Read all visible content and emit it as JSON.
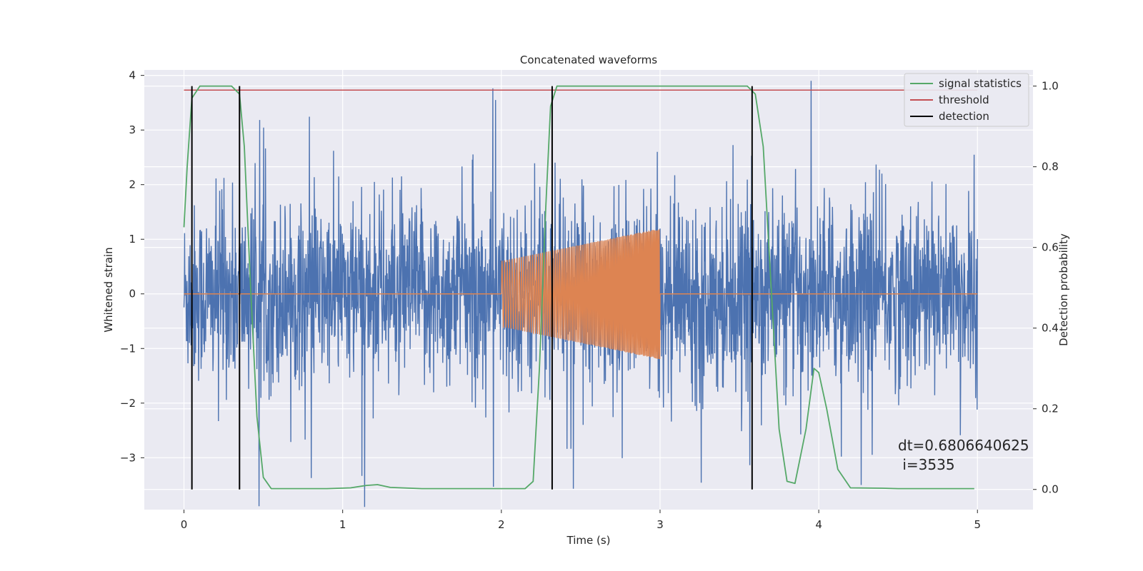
{
  "chart_data": {
    "type": "line",
    "title": "Concatenated waveforms",
    "xlabel": "Time (s)",
    "ylabel_left": "Whitened strain",
    "ylabel_right": "Detection probability",
    "xlim": [
      -0.25,
      5.35
    ],
    "ylim_left": [
      -3.95,
      4.1
    ],
    "ylim_right": [
      -0.05,
      1.04
    ],
    "x_ticks": [
      0,
      1,
      2,
      3,
      4,
      5
    ],
    "x_tick_labels": [
      "0",
      "1",
      "2",
      "3",
      "4",
      "5"
    ],
    "y_left_ticks": [
      -3,
      -2,
      -1,
      0,
      1,
      2,
      3,
      4
    ],
    "y_left_tick_labels": [
      "−3",
      "−2",
      "−1",
      "0",
      "1",
      "2",
      "3",
      "4"
    ],
    "y_right_ticks": [
      0.0,
      0.2,
      0.4,
      0.6,
      0.8,
      1.0
    ],
    "y_right_tick_labels": [
      "0.0",
      "0.2",
      "0.4",
      "0.6",
      "0.8",
      "1.0"
    ],
    "grid": true,
    "legend_position": "top-right",
    "legend": [
      {
        "label": "signal statistics",
        "color": "#55a868"
      },
      {
        "label": "threshold",
        "color": "#c44e52"
      },
      {
        "label": "detection",
        "color": "#000000"
      }
    ],
    "strain_noise": {
      "x_range": [
        0,
        5
      ],
      "typical_amplitude": 0.8,
      "peak_amplitude": 3.9,
      "color": "#4c72b0"
    },
    "injected_signal": {
      "x_range": [
        2,
        3
      ],
      "amplitude_start": 0.6,
      "amplitude_end": 1.2,
      "color": "#dd8452"
    },
    "signal_statistics": {
      "color": "#55a868",
      "points": [
        [
          0,
          0.65
        ],
        [
          0.02,
          0.8
        ],
        [
          0.05,
          0.97
        ],
        [
          0.1,
          1.0
        ],
        [
          0.3,
          1.0
        ],
        [
          0.35,
          0.98
        ],
        [
          0.38,
          0.85
        ],
        [
          0.42,
          0.5
        ],
        [
          0.46,
          0.18
        ],
        [
          0.5,
          0.03
        ],
        [
          0.55,
          0.002
        ],
        [
          0.9,
          0.002
        ],
        [
          1.05,
          0.004
        ],
        [
          1.15,
          0.01
        ],
        [
          1.22,
          0.012
        ],
        [
          1.3,
          0.005
        ],
        [
          1.5,
          0.002
        ],
        [
          2.15,
          0.002
        ],
        [
          2.2,
          0.02
        ],
        [
          2.24,
          0.3
        ],
        [
          2.28,
          0.7
        ],
        [
          2.31,
          0.95
        ],
        [
          2.35,
          1.0
        ],
        [
          3.55,
          1.0
        ],
        [
          3.6,
          0.98
        ],
        [
          3.65,
          0.85
        ],
        [
          3.7,
          0.5
        ],
        [
          3.75,
          0.15
        ],
        [
          3.8,
          0.02
        ],
        [
          3.85,
          0.015
        ],
        [
          3.92,
          0.15
        ],
        [
          3.97,
          0.3
        ],
        [
          4.0,
          0.29
        ],
        [
          4.05,
          0.2
        ],
        [
          4.12,
          0.05
        ],
        [
          4.2,
          0.004
        ],
        [
          4.4,
          0.003
        ],
        [
          4.5,
          0.002
        ],
        [
          4.98,
          0.002
        ]
      ]
    },
    "threshold": {
      "value": 0.99,
      "x_range": [
        0,
        5
      ],
      "color": "#c44e52"
    },
    "detections": [
      0.05,
      0.35,
      2.32,
      3.58
    ],
    "annotation": {
      "line1": "dt=0.6806640625",
      "line2": " i=3535"
    }
  }
}
